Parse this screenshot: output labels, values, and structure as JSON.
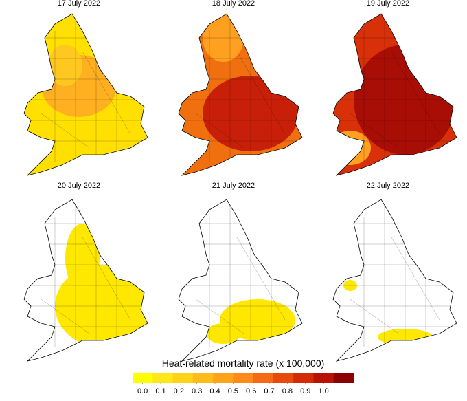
{
  "panels": [
    {
      "title": "17 July 2022"
    },
    {
      "title": "18 July 2022"
    },
    {
      "title": "19 July 2022"
    },
    {
      "title": "20 July 2022"
    },
    {
      "title": "21 July 2022"
    },
    {
      "title": "22 July 2022"
    }
  ],
  "legend": {
    "title": "Heat-related mortality rate (x 100,000)",
    "colors": [
      "#ffff00",
      "#ffe81a",
      "#ffd21a",
      "#ffbb1a",
      "#ffa31a",
      "#ff8a1a",
      "#f56a12",
      "#e84a0c",
      "#d42a08",
      "#b81206",
      "#8b0000"
    ],
    "ticks": [
      {
        "value": 0,
        "label": "0.0"
      },
      0.1,
      0.2,
      0.3,
      0.4,
      0.5,
      0.6,
      0.7,
      0.8,
      0.9,
      {
        "value": 1,
        "label": "1.0"
      }
    ]
  }
}
